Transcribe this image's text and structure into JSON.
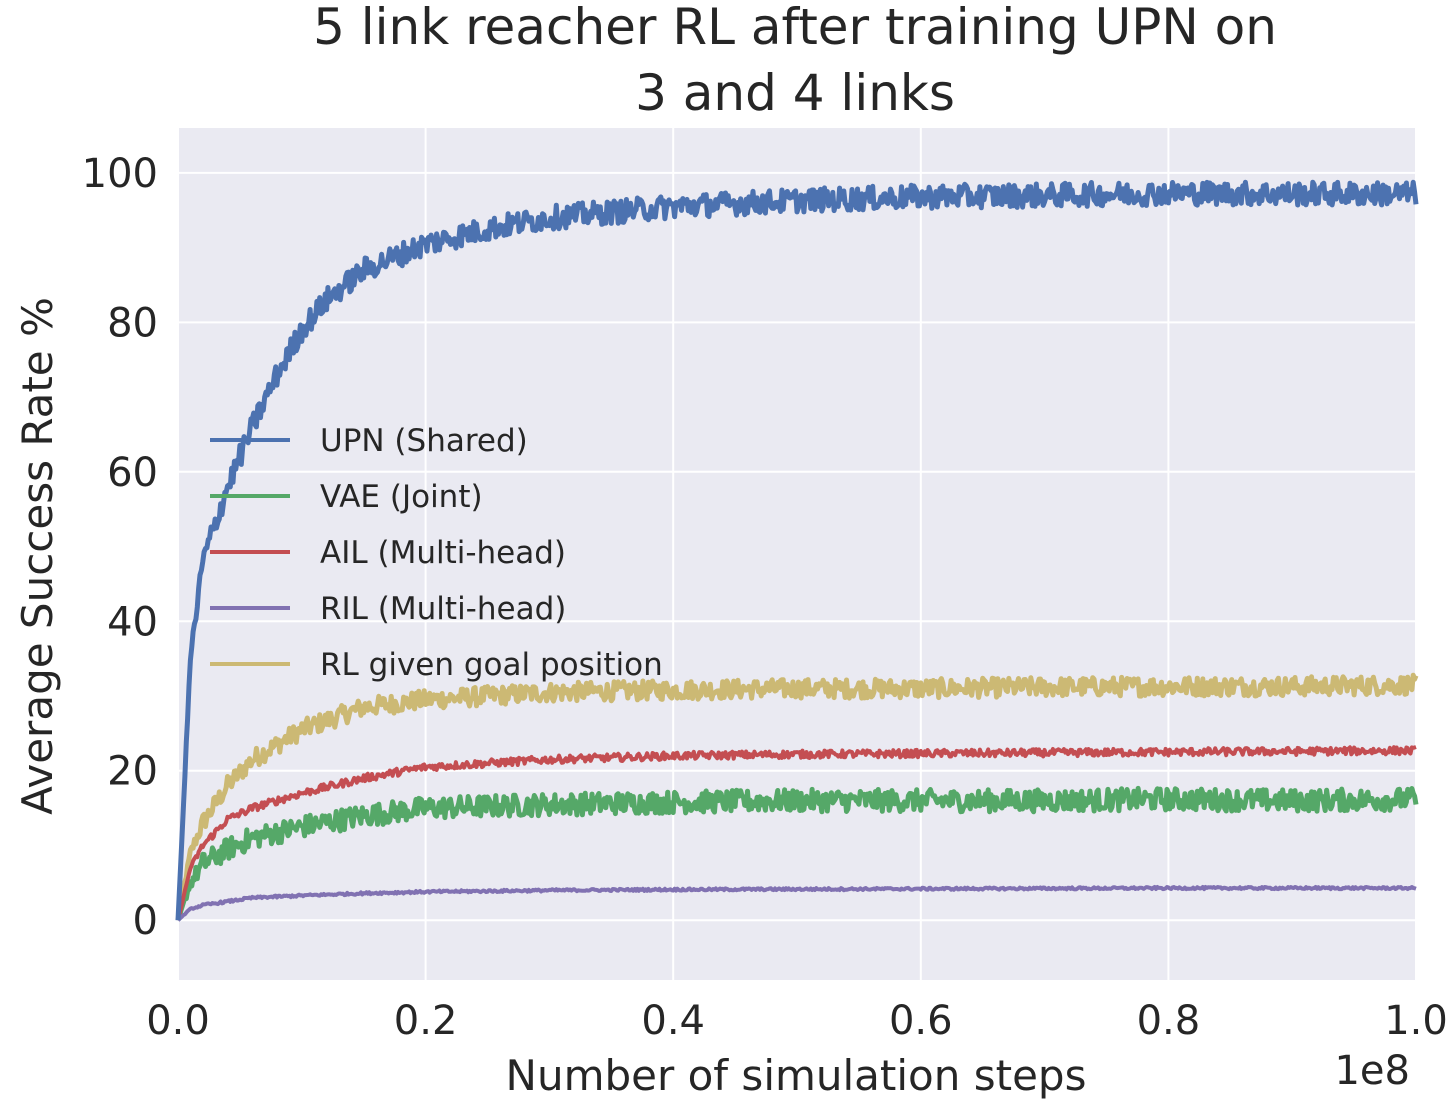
{
  "chart_data": {
    "type": "line",
    "title_lines": [
      "5 link reacher RL after training UPN on",
      "3 and 4 links"
    ],
    "xlabel": "Number of simulation steps",
    "ylabel": "Average Success Rate %",
    "x_offset_label": "1e8",
    "xlim": [
      0.0,
      1.0
    ],
    "ylim": [
      -8,
      106
    ],
    "x_ticks": [
      0.0,
      0.2,
      0.4,
      0.6,
      0.8,
      1.0
    ],
    "x_tick_labels": [
      "0.0",
      "0.2",
      "0.4",
      "0.6",
      "0.8",
      "1.0"
    ],
    "y_ticks": [
      0,
      20,
      40,
      60,
      80,
      100
    ],
    "y_tick_labels": [
      "0",
      "20",
      "40",
      "60",
      "80",
      "100"
    ],
    "grid": true,
    "background": "#EAEAF2",
    "legend_position": "center-left",
    "series": [
      {
        "name": "UPN (Shared)",
        "color": "#4C72B0",
        "noise": 1.6,
        "x": [
          0.0,
          0.01,
          0.02,
          0.04,
          0.06,
          0.08,
          0.1,
          0.12,
          0.15,
          0.2,
          0.25,
          0.3,
          0.4,
          0.5,
          0.6,
          0.7,
          0.8,
          0.9,
          1.0
        ],
        "y": [
          0,
          35,
          48,
          58,
          66,
          73,
          79,
          83,
          87,
          90.5,
          92.5,
          94,
          95.5,
          96.3,
          96.8,
          97,
          97.3,
          97.2,
          97.2
        ]
      },
      {
        "name": "VAE (Joint)",
        "color": "#55A868",
        "noise": 1.5,
        "x": [
          0.0,
          0.01,
          0.02,
          0.04,
          0.06,
          0.1,
          0.15,
          0.2,
          0.3,
          0.4,
          0.5,
          0.6,
          0.7,
          0.8,
          0.9,
          1.0
        ],
        "y": [
          0,
          5,
          7.5,
          9.5,
          11,
          12.5,
          14,
          15,
          15.5,
          15.8,
          16,
          16,
          16,
          16.2,
          16,
          16.2
        ]
      },
      {
        "name": "AIL (Multi-head)",
        "color": "#C44E52",
        "noise": 0.5,
        "x": [
          0.0,
          0.01,
          0.02,
          0.04,
          0.06,
          0.1,
          0.15,
          0.2,
          0.25,
          0.3,
          0.4,
          0.5,
          0.6,
          0.7,
          0.8,
          0.9,
          1.0
        ],
        "y": [
          0,
          7,
          10,
          13.5,
          15,
          17,
          19,
          20.5,
          21,
          21.5,
          22,
          22.2,
          22.3,
          22.4,
          22.5,
          22.6,
          22.7
        ]
      },
      {
        "name": "RIL (Multi-head)",
        "color": "#8172B2",
        "noise": 0.15,
        "x": [
          0.0,
          0.01,
          0.02,
          0.04,
          0.06,
          0.1,
          0.15,
          0.2,
          0.3,
          0.4,
          0.6,
          0.8,
          1.0
        ],
        "y": [
          0,
          1.5,
          2,
          2.5,
          3,
          3.3,
          3.6,
          3.8,
          4,
          4.1,
          4.2,
          4.3,
          4.3
        ]
      },
      {
        "name": "RL given goal position",
        "color": "#CCB974",
        "noise": 1.3,
        "x": [
          0.0,
          0.01,
          0.02,
          0.04,
          0.06,
          0.1,
          0.15,
          0.2,
          0.25,
          0.3,
          0.4,
          0.5,
          0.6,
          0.7,
          0.8,
          0.9,
          1.0
        ],
        "y": [
          0,
          9,
          13,
          18,
          21.5,
          25.5,
          28.5,
          29.5,
          30,
          30.5,
          30.8,
          31,
          31,
          31.2,
          31.3,
          31.3,
          31.5
        ]
      }
    ]
  }
}
